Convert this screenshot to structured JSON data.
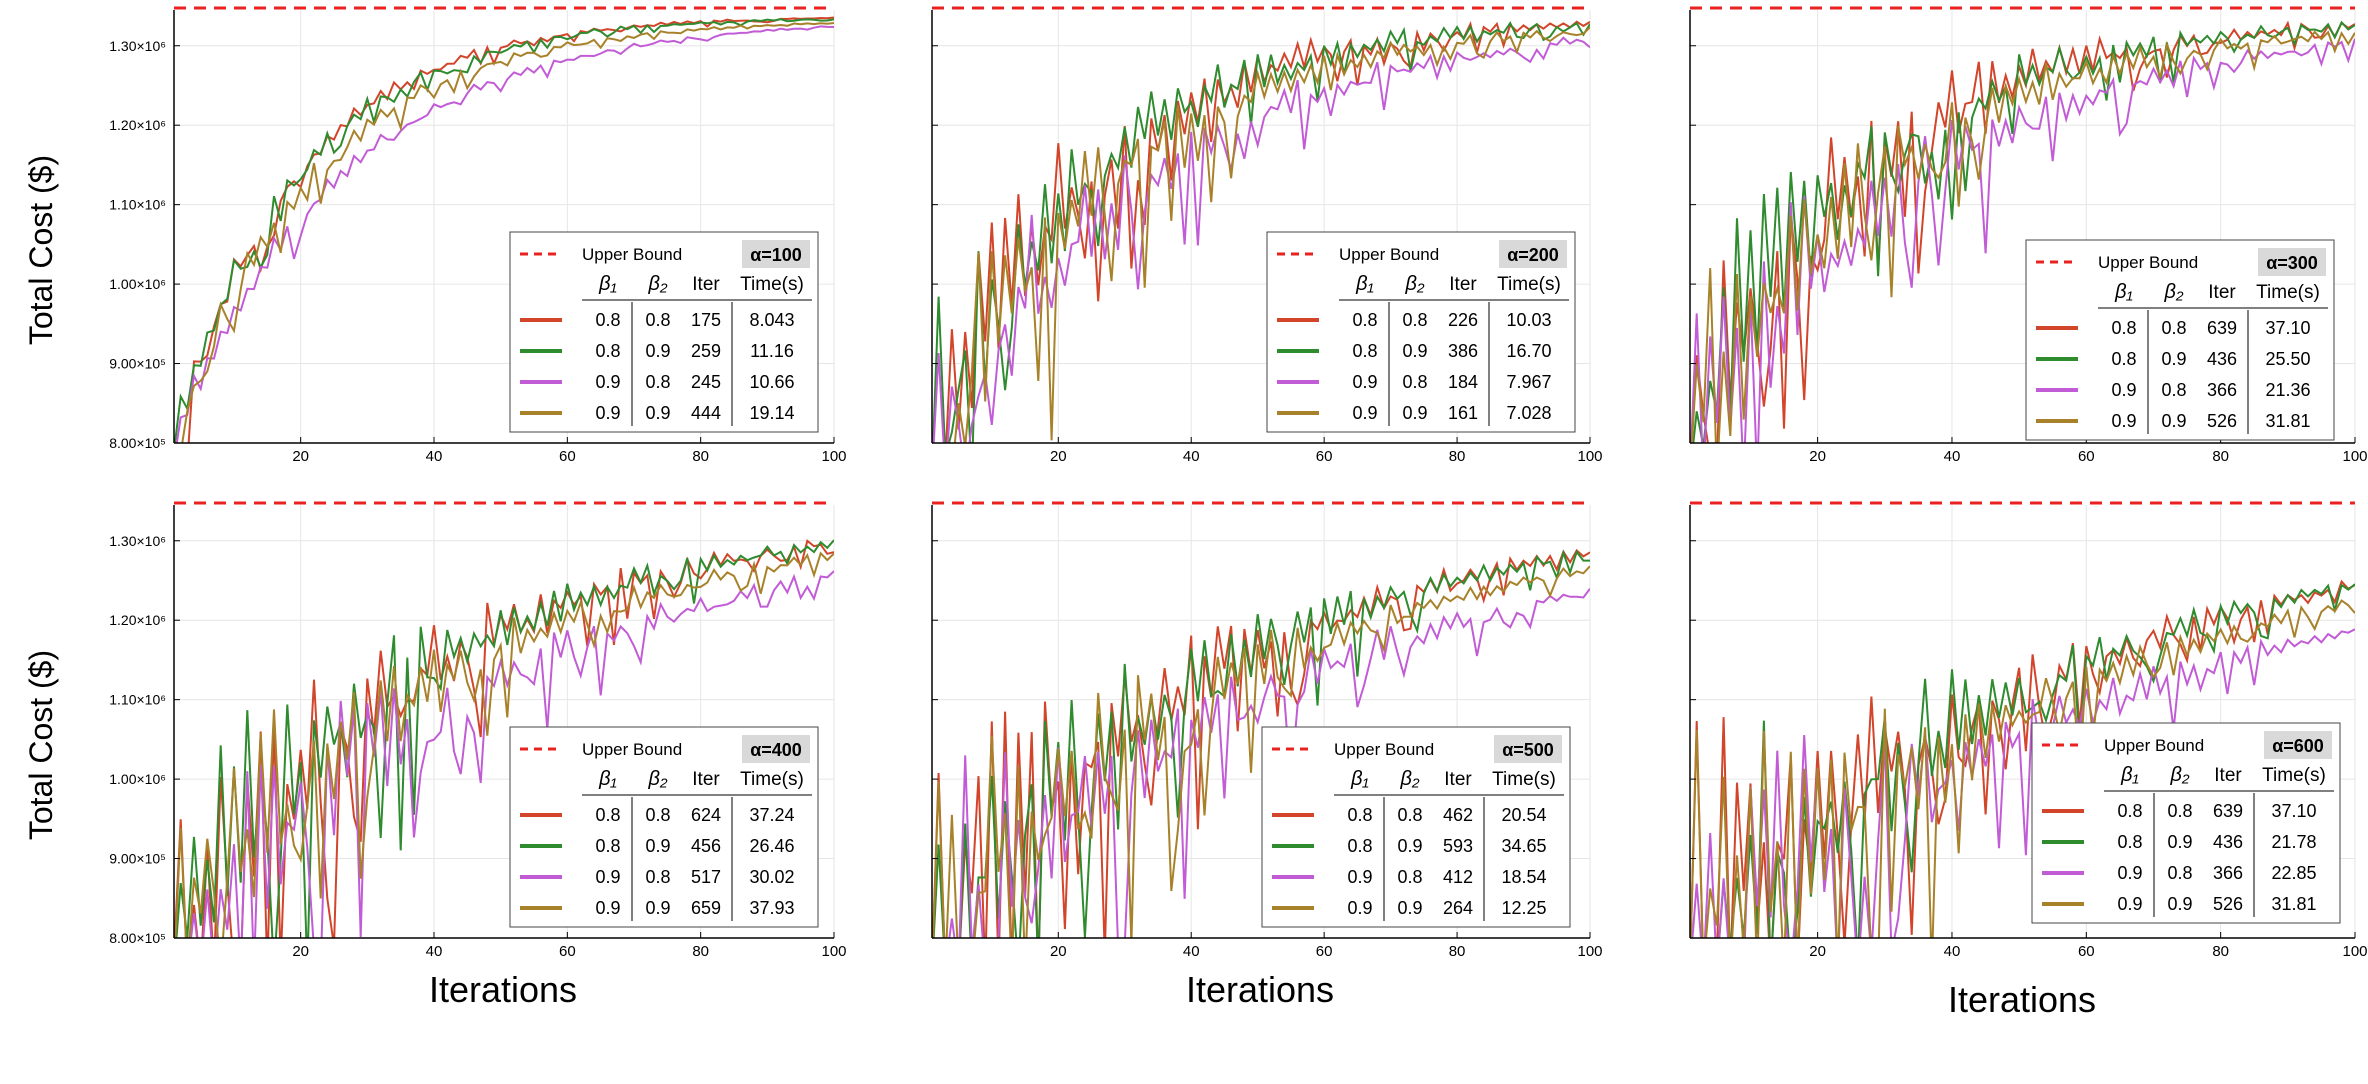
{
  "ylabel": "Total Cost ($)",
  "xlabel": "Iterations",
  "yticks": [
    {
      "v": 800000,
      "label": "8.00×10⁵"
    },
    {
      "v": 900000,
      "label": "9.00×10⁵"
    },
    {
      "v": 1000000,
      "label": "1.00×10⁶"
    },
    {
      "v": 1100000,
      "label": "1.10×10⁶"
    },
    {
      "v": 1200000,
      "label": "1.20×10⁶"
    },
    {
      "v": 1300000,
      "label": "1.30×10⁶"
    }
  ],
  "xticks": [
    20,
    40,
    60,
    80,
    100
  ],
  "legend_header": {
    "upper_bound": "Upper Bound",
    "b1": "β₁",
    "b2": "β₂",
    "iter": "Iter",
    "time": "Time(s)"
  },
  "colors": {
    "bound": "#e8221f",
    "red": "#d2452b",
    "green": "#2e8b2e",
    "purple": "#c25cd6",
    "olive": "#a8822a"
  },
  "chart_data": [
    {
      "type": "line",
      "title": "α=100",
      "xlim": [
        1,
        100
      ],
      "ylim": [
        800000,
        1345000
      ],
      "upper_bound": 1345000,
      "series": [
        {
          "name": "β₁=0.8, β₂=0.8",
          "color": "red",
          "b1": "0.8",
          "b2": "0.8",
          "iter": "175",
          "time": "8.043"
        },
        {
          "name": "β₁=0.8, β₂=0.9",
          "color": "green",
          "b1": "0.8",
          "b2": "0.9",
          "iter": "259",
          "time": "11.16"
        },
        {
          "name": "β₁=0.9, β₂=0.8",
          "color": "purple",
          "b1": "0.9",
          "b2": "0.8",
          "iter": "245",
          "time": "10.66"
        },
        {
          "name": "β₁=0.9, β₂=0.9",
          "color": "olive",
          "b1": "0.9",
          "b2": "0.9",
          "iter": "444",
          "time": "19.14"
        }
      ]
    },
    {
      "type": "line",
      "title": "α=200",
      "xlim": [
        1,
        100
      ],
      "ylim": [
        800000,
        1345000
      ],
      "upper_bound": 1345000,
      "series": [
        {
          "name": "β₁=0.8, β₂=0.8",
          "color": "red",
          "b1": "0.8",
          "b2": "0.8",
          "iter": "226",
          "time": "10.03"
        },
        {
          "name": "β₁=0.8, β₂=0.9",
          "color": "green",
          "b1": "0.8",
          "b2": "0.9",
          "iter": "386",
          "time": "16.70"
        },
        {
          "name": "β₁=0.9, β₂=0.8",
          "color": "purple",
          "b1": "0.9",
          "b2": "0.8",
          "iter": "184",
          "time": "7.967"
        },
        {
          "name": "β₁=0.9, β₂=0.9",
          "color": "olive",
          "b1": "0.9",
          "b2": "0.9",
          "iter": "161",
          "time": "7.028"
        }
      ]
    },
    {
      "type": "line",
      "title": "α=300",
      "xlim": [
        1,
        100
      ],
      "ylim": [
        800000,
        1345000
      ],
      "upper_bound": 1345000,
      "series": [
        {
          "name": "β₁=0.8, β₂=0.8",
          "color": "red",
          "b1": "0.8",
          "b2": "0.8",
          "iter": "639",
          "time": "37.10"
        },
        {
          "name": "β₁=0.8, β₂=0.9",
          "color": "green",
          "b1": "0.8",
          "b2": "0.9",
          "iter": "436",
          "time": "25.50"
        },
        {
          "name": "β₁=0.9, β₂=0.8",
          "color": "purple",
          "b1": "0.9",
          "b2": "0.8",
          "iter": "366",
          "time": "21.36"
        },
        {
          "name": "β₁=0.9, β₂=0.9",
          "color": "olive",
          "b1": "0.9",
          "b2": "0.9",
          "iter": "526",
          "time": "31.81"
        }
      ]
    },
    {
      "type": "line",
      "title": "α=400",
      "xlim": [
        1,
        100
      ],
      "ylim": [
        800000,
        1345000
      ],
      "upper_bound": 1345000,
      "series": [
        {
          "name": "β₁=0.8, β₂=0.8",
          "color": "red",
          "b1": "0.8",
          "b2": "0.8",
          "iter": "624",
          "time": "37.24"
        },
        {
          "name": "β₁=0.8, β₂=0.9",
          "color": "green",
          "b1": "0.8",
          "b2": "0.9",
          "iter": "456",
          "time": "26.46"
        },
        {
          "name": "β₁=0.9, β₂=0.8",
          "color": "purple",
          "b1": "0.9",
          "b2": "0.8",
          "iter": "517",
          "time": "30.02"
        },
        {
          "name": "β₁=0.9, β₂=0.9",
          "color": "olive",
          "b1": "0.9",
          "b2": "0.9",
          "iter": "659",
          "time": "37.93"
        }
      ]
    },
    {
      "type": "line",
      "title": "α=500",
      "xlim": [
        1,
        100
      ],
      "ylim": [
        800000,
        1345000
      ],
      "upper_bound": 1345000,
      "series": [
        {
          "name": "β₁=0.8, β₂=0.8",
          "color": "red",
          "b1": "0.8",
          "b2": "0.8",
          "iter": "462",
          "time": "20.54"
        },
        {
          "name": "β₁=0.8, β₂=0.9",
          "color": "green",
          "b1": "0.8",
          "b2": "0.9",
          "iter": "593",
          "time": "34.65"
        },
        {
          "name": "β₁=0.9, β₂=0.8",
          "color": "purple",
          "b1": "0.9",
          "b2": "0.8",
          "iter": "412",
          "time": "18.54"
        },
        {
          "name": "β₁=0.9, β₂=0.9",
          "color": "olive",
          "b1": "0.9",
          "b2": "0.9",
          "iter": "264",
          "time": "12.25"
        }
      ]
    },
    {
      "type": "line",
      "title": "α=600",
      "xlim": [
        1,
        100
      ],
      "ylim": [
        800000,
        1345000
      ],
      "upper_bound": 1345000,
      "series": [
        {
          "name": "β₁=0.8, β₂=0.8",
          "color": "red",
          "b1": "0.8",
          "b2": "0.8",
          "iter": "639",
          "time": "37.10"
        },
        {
          "name": "β₁=0.8, β₂=0.9",
          "color": "green",
          "b1": "0.8",
          "b2": "0.9",
          "iter": "436",
          "time": "21.78"
        },
        {
          "name": "β₁=0.9, β₂=0.8",
          "color": "purple",
          "b1": "0.9",
          "b2": "0.8",
          "iter": "366",
          "time": "22.85"
        },
        {
          "name": "β₁=0.9, β₂=0.9",
          "color": "olive",
          "b1": "0.9",
          "b2": "0.9",
          "iter": "526",
          "time": "31.81"
        }
      ]
    }
  ]
}
